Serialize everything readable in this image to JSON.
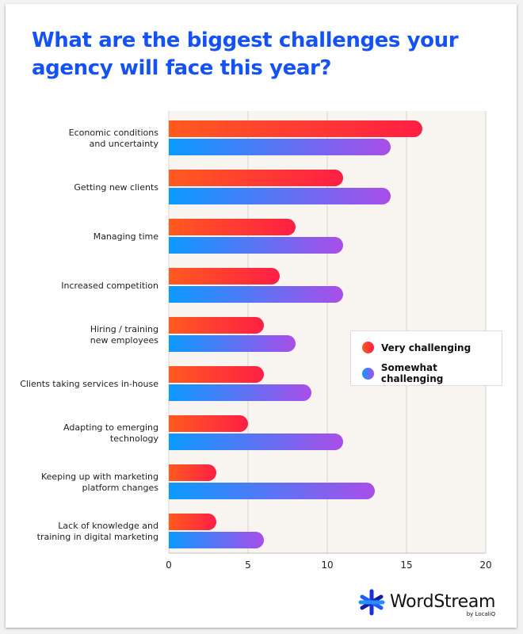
{
  "colors": {
    "title": "#1452f5",
    "very_start": "#ff5a1f",
    "very_end": "#ff1f45",
    "somewhat_start": "#0b9aff",
    "somewhat_end": "#a94ee8",
    "plot_bg": "#f8f5f1",
    "grid": "#dddad5"
  },
  "chart_data": {
    "type": "bar",
    "orientation": "horizontal",
    "title": "What are the biggest challenges your agency will face this year?",
    "xlabel": "",
    "ylabel": "",
    "xlim": [
      0,
      20
    ],
    "xticks": [
      0,
      5,
      10,
      15,
      20
    ],
    "grid": true,
    "legend_position": "right",
    "categories": [
      [
        "Economic conditions",
        "and uncertainty"
      ],
      [
        "Getting new clients"
      ],
      [
        "Managing time"
      ],
      [
        "Increased competition"
      ],
      [
        "Hiring / training",
        "new employees"
      ],
      [
        "Clients taking services in-house"
      ],
      [
        "Adapting to emerging",
        "technology"
      ],
      [
        "Keeping up with marketing",
        "platform changes"
      ],
      [
        "Lack of knowledge and",
        "training in digital marketing"
      ]
    ],
    "series": [
      {
        "name": "Very challenging",
        "values": [
          16,
          11,
          8,
          7,
          6,
          6,
          5,
          3,
          3
        ]
      },
      {
        "name": "Somewhat challenging",
        "values": [
          14,
          14,
          11,
          11,
          8,
          9,
          11,
          13,
          6
        ]
      }
    ]
  },
  "legend": {
    "items": [
      {
        "label": "Very challenging"
      },
      {
        "label": "Somewhat challenging"
      }
    ]
  },
  "logo": {
    "name": "WordStream",
    "sub": "by LocaliQ",
    "icon": "wordstream-asterisk-icon"
  }
}
